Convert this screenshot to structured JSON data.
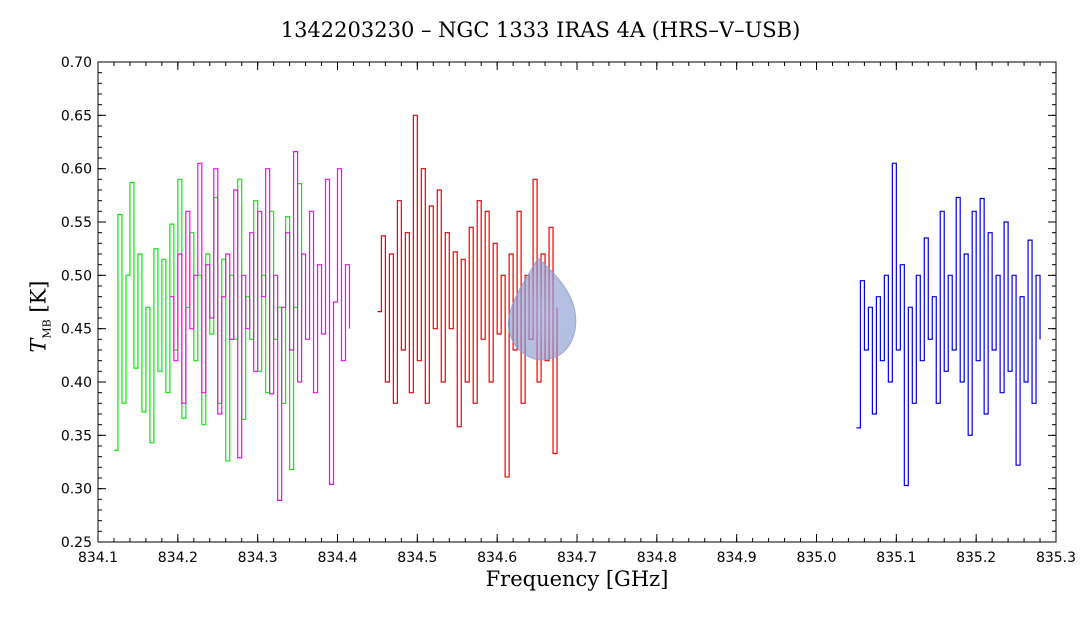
{
  "chart_data": {
    "type": "line",
    "title": "1342203230 – NGC 1333 IRAS 4A (HRS–V–USB)",
    "xlabel": "Frequency [GHz]",
    "ylabel": {
      "symbol": "T",
      "subscript": "MB",
      "unit": "[K]"
    },
    "xlim": [
      834.1,
      835.3
    ],
    "ylim": [
      0.25,
      0.7
    ],
    "xticks": [
      "834.1",
      "834.2",
      "834.3",
      "834.4",
      "834.5",
      "834.6",
      "834.7",
      "834.8",
      "834.9",
      "835.0",
      "835.1",
      "835.2",
      "835.3"
    ],
    "yticks": [
      "0.25",
      "0.30",
      "0.35",
      "0.40",
      "0.45",
      "0.50",
      "0.55",
      "0.60",
      "0.65",
      "0.70"
    ],
    "grid": false,
    "series": [
      {
        "color": "#00ee00",
        "x": [
          834.12,
          834.125,
          834.13,
          834.135,
          834.14,
          834.145,
          834.15,
          834.155,
          834.16,
          834.165,
          834.17,
          834.175,
          834.18,
          834.185,
          834.19,
          834.195,
          834.2,
          834.205,
          834.21,
          834.215,
          834.22,
          834.225,
          834.23,
          834.235,
          834.24,
          834.245,
          834.25,
          834.255,
          834.26,
          834.265,
          834.27,
          834.275,
          834.28,
          834.285,
          834.29,
          834.295,
          834.3,
          834.305,
          834.31,
          834.315,
          834.32,
          834.325,
          834.33,
          834.335,
          834.34,
          834.345,
          834.35,
          834.355
        ],
        "y": [
          0.336,
          0.557,
          0.38,
          0.5,
          0.587,
          0.413,
          0.52,
          0.372,
          0.47,
          0.343,
          0.525,
          0.41,
          0.515,
          0.39,
          0.548,
          0.43,
          0.59,
          0.366,
          0.47,
          0.54,
          0.42,
          0.5,
          0.36,
          0.52,
          0.445,
          0.573,
          0.38,
          0.515,
          0.326,
          0.5,
          0.44,
          0.59,
          0.365,
          0.48,
          0.44,
          0.57,
          0.41,
          0.5,
          0.39,
          0.56,
          0.44,
          0.47,
          0.38,
          0.555,
          0.318,
          0.47,
          0.586,
          0.43
        ]
      },
      {
        "color": "#ff00ff",
        "x": [
          834.19,
          834.195,
          834.2,
          834.205,
          834.21,
          834.215,
          834.22,
          834.225,
          834.23,
          834.235,
          834.24,
          834.245,
          834.25,
          834.255,
          834.26,
          834.265,
          834.27,
          834.275,
          834.28,
          834.285,
          834.29,
          834.295,
          834.3,
          834.305,
          834.31,
          834.315,
          834.32,
          834.325,
          834.33,
          834.335,
          834.34,
          834.345,
          834.35,
          834.355,
          834.36,
          834.365,
          834.37,
          834.375,
          834.38,
          834.385,
          834.39,
          834.395,
          834.4,
          834.405,
          834.41,
          834.415
        ],
        "y": [
          0.48,
          0.42,
          0.52,
          0.38,
          0.56,
          0.45,
          0.5,
          0.605,
          0.39,
          0.51,
          0.46,
          0.6,
          0.37,
          0.48,
          0.52,
          0.44,
          0.58,
          0.329,
          0.5,
          0.45,
          0.54,
          0.41,
          0.56,
          0.48,
          0.6,
          0.389,
          0.5,
          0.289,
          0.47,
          0.54,
          0.43,
          0.616,
          0.4,
          0.52,
          0.44,
          0.56,
          0.39,
          0.51,
          0.445,
          0.59,
          0.304,
          0.475,
          0.6,
          0.42,
          0.51,
          0.45
        ]
      },
      {
        "color": "#ee0000",
        "x": [
          834.45,
          834.455,
          834.46,
          834.465,
          834.47,
          834.475,
          834.48,
          834.485,
          834.49,
          834.495,
          834.5,
          834.505,
          834.51,
          834.515,
          834.52,
          834.525,
          834.53,
          834.535,
          834.54,
          834.545,
          834.55,
          834.555,
          834.56,
          834.565,
          834.57,
          834.575,
          834.58,
          834.585,
          834.59,
          834.595,
          834.6,
          834.605,
          834.61,
          834.615,
          834.62,
          834.625,
          834.63,
          834.635,
          834.64,
          834.645,
          834.65,
          834.655,
          834.66,
          834.665,
          834.67,
          834.675
        ],
        "y": [
          0.466,
          0.537,
          0.4,
          0.52,
          0.38,
          0.57,
          0.43,
          0.54,
          0.39,
          0.65,
          0.42,
          0.6,
          0.38,
          0.565,
          0.45,
          0.58,
          0.4,
          0.54,
          0.45,
          0.522,
          0.358,
          0.515,
          0.4,
          0.545,
          0.38,
          0.57,
          0.44,
          0.56,
          0.4,
          0.53,
          0.445,
          0.5,
          0.311,
          0.52,
          0.43,
          0.56,
          0.38,
          0.5,
          0.44,
          0.59,
          0.4,
          0.52,
          0.42,
          0.545,
          0.333,
          0.47
        ]
      },
      {
        "color": "#0000dd",
        "x": [
          835.05,
          835.055,
          835.06,
          835.065,
          835.07,
          835.075,
          835.08,
          835.085,
          835.09,
          835.095,
          835.1,
          835.105,
          835.11,
          835.115,
          835.12,
          835.125,
          835.13,
          835.135,
          835.14,
          835.145,
          835.15,
          835.155,
          835.16,
          835.165,
          835.17,
          835.175,
          835.18,
          835.185,
          835.19,
          835.195,
          835.2,
          835.205,
          835.21,
          835.215,
          835.22,
          835.225,
          835.23,
          835.235,
          835.24,
          835.245,
          835.25,
          835.255,
          835.26,
          835.265,
          835.27,
          835.275,
          835.28
        ],
        "y": [
          0.357,
          0.495,
          0.43,
          0.47,
          0.37,
          0.48,
          0.42,
          0.5,
          0.4,
          0.605,
          0.43,
          0.51,
          0.303,
          0.47,
          0.38,
          0.5,
          0.42,
          0.535,
          0.44,
          0.48,
          0.38,
          0.56,
          0.41,
          0.5,
          0.43,
          0.573,
          0.4,
          0.52,
          0.35,
          0.56,
          0.42,
          0.572,
          0.37,
          0.54,
          0.43,
          0.5,
          0.39,
          0.55,
          0.41,
          0.5,
          0.322,
          0.48,
          0.4,
          0.533,
          0.38,
          0.5,
          0.44
        ]
      }
    ]
  }
}
